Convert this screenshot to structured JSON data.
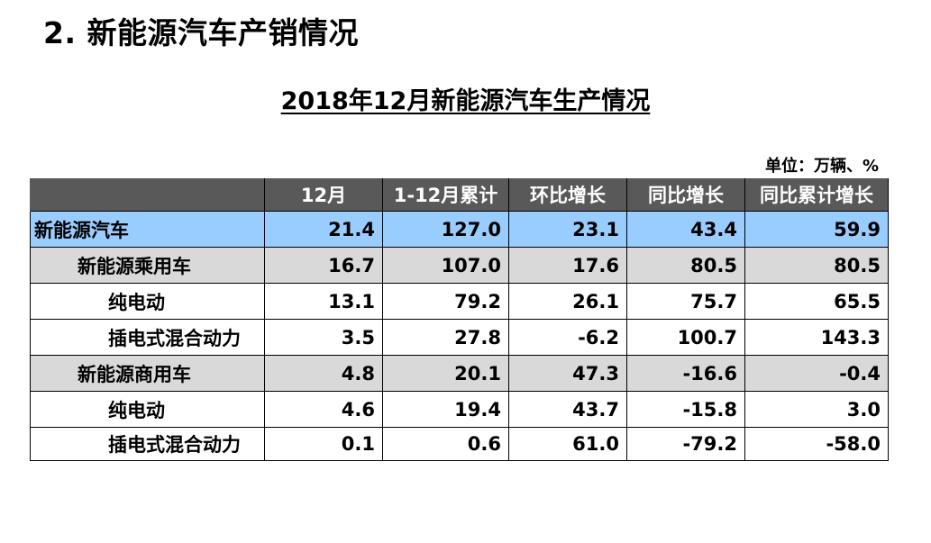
{
  "section_title": "2. 新能源汽车产销情况",
  "table_title": "2018年12月新能源汽车生产情况",
  "unit": "单位：万辆、%",
  "columns": [
    "",
    "12月",
    "1-12月累计",
    "环比增长",
    "同比增长",
    "同比累计增长"
  ],
  "rows": [
    {
      "name": "新能源汽车",
      "level": 0,
      "values": [
        "21.4",
        "127.0",
        "23.1",
        "43.4",
        "59.9"
      ]
    },
    {
      "name": "新能源乘用车",
      "level": 1,
      "values": [
        "16.7",
        "107.0",
        "17.6",
        "80.5",
        "80.5"
      ]
    },
    {
      "name": "纯电动",
      "level": 2,
      "values": [
        "13.1",
        "79.2",
        "26.1",
        "75.7",
        "65.5"
      ]
    },
    {
      "name": "插电式混合动力",
      "level": 2,
      "values": [
        "3.5",
        "27.8",
        "-6.2",
        "100.7",
        "143.3"
      ]
    },
    {
      "name": "新能源商用车",
      "level": 1,
      "values": [
        "4.8",
        "20.1",
        "47.3",
        "-16.6",
        "-0.4"
      ]
    },
    {
      "name": "纯电动",
      "level": 2,
      "values": [
        "4.6",
        "19.4",
        "43.7",
        "-15.8",
        "3.0"
      ]
    },
    {
      "name": "插电式混合动力",
      "level": 2,
      "values": [
        "0.1",
        "0.6",
        "61.0",
        "-79.2",
        "-58.0"
      ]
    }
  ],
  "colors": {
    "header_bg": "#595959",
    "total_row_bg": "#99ccff",
    "subtotal_row_bg": "#d9d9d9"
  }
}
